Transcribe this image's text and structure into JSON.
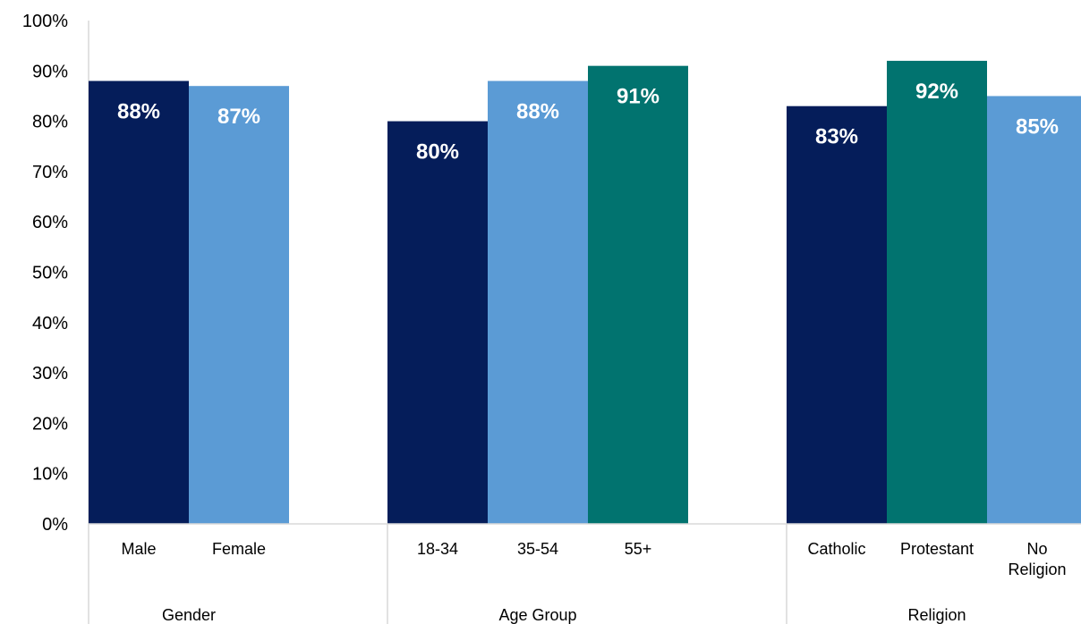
{
  "chart_data": {
    "type": "bar",
    "ylim": [
      0,
      100
    ],
    "yticks": [
      "0%",
      "10%",
      "20%",
      "30%",
      "40%",
      "50%",
      "60%",
      "70%",
      "80%",
      "90%",
      "100%"
    ],
    "grid": false,
    "legend": "none",
    "groups": [
      {
        "name": "Gender",
        "bars": [
          {
            "category": "Male",
            "value": 88,
            "label": "88%",
            "color": "#051D5A"
          },
          {
            "category": "Female",
            "value": 87,
            "label": "87%",
            "color": "#5B9BD5"
          }
        ]
      },
      {
        "name": "Age Group",
        "bars": [
          {
            "category": "18-34",
            "value": 80,
            "label": "80%",
            "color": "#051D5A"
          },
          {
            "category": "35-54",
            "value": 88,
            "label": "88%",
            "color": "#5B9BD5"
          },
          {
            "category": "55+",
            "value": 91,
            "label": "91%",
            "color": "#01736F"
          }
        ]
      },
      {
        "name": "Religion",
        "bars": [
          {
            "category": "Catholic",
            "value": 83,
            "label": "83%",
            "color": "#051D5A"
          },
          {
            "category": "Protestant",
            "value": 92,
            "label": "92%",
            "color": "#01736F"
          },
          {
            "category": "No Religion",
            "value": 85,
            "label": "85%",
            "color": "#5B9BD5"
          }
        ]
      }
    ]
  }
}
